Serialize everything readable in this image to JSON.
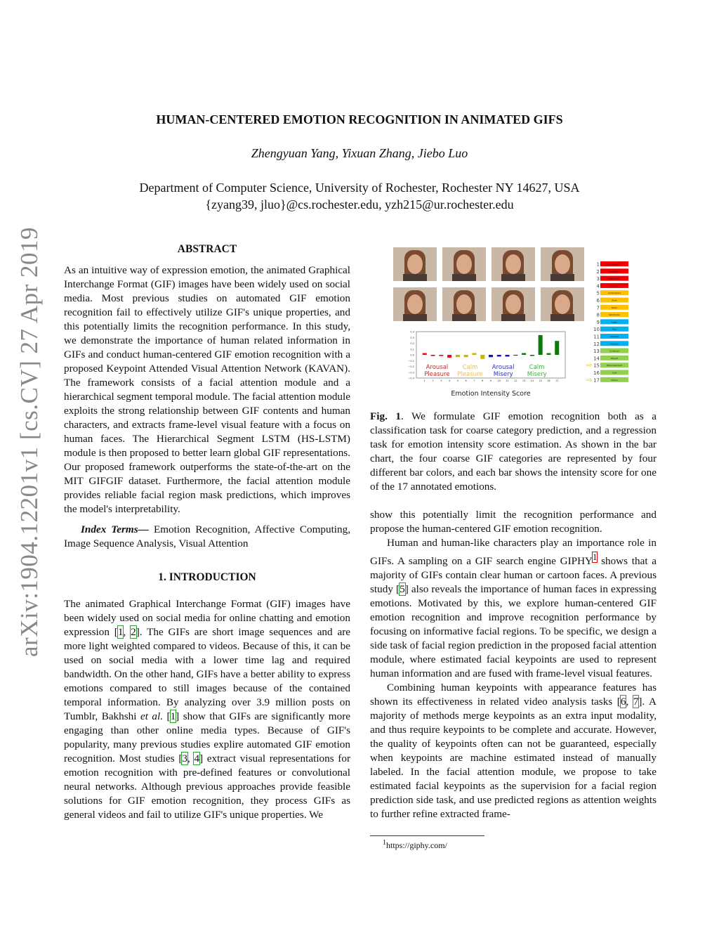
{
  "side_stamp": "arXiv:1904.12201v1  [cs.CV]  27 Apr 2019",
  "title": "HUMAN-CENTERED EMOTION RECOGNITION IN ANIMATED GIFS",
  "authors": "Zhengyuan Yang, Yixuan Zhang, Jiebo Luo",
  "affiliation": "Department of Computer Science, University of Rochester, Rochester NY 14627, USA",
  "emails": "{zyang39, jluo}@cs.rochester.edu, yzh215@ur.rochester.edu",
  "abstract": {
    "heading": "ABSTRACT",
    "text": "As an intuitive way of expression emotion, the animated Graphical Interchange Format (GIF) images have been widely used on social media. Most previous studies on automated GIF emotion recognition fail to effectively utilize GIF's unique properties, and this potentially limits the recognition performance. In this study, we demonstrate the importance of human related information in GIFs and conduct human-centered GIF emotion recognition with a proposed Keypoint Attended Visual Attention Network (KAVAN). The framework consists of a facial attention module and a hierarchical segment temporal module. The facial attention module exploits the strong relationship between GIF contents and human characters, and extracts frame-level visual feature with a focus on human faces. The Hierarchical Segment LSTM (HS-LSTM) module is then proposed to better learn global GIF representations. Our proposed framework outperforms the state-of-the-art on the MIT GIFGIF dataset. Furthermore, the facial attention module provides reliable facial region mask predictions, which improves the model's interpretability.",
    "index_terms_label": "Index Terms—",
    "index_terms": " Emotion Recognition, Affective Computing, Image Sequence Analysis, Visual Attention"
  },
  "intro": {
    "heading": "1.  INTRODUCTION",
    "p1": [
      "The animated Graphical Interchange Format (GIF) images have been widely used on social media for online chatting and emotion expression ",
      "1",
      ", ",
      "2",
      ". The GIFs are short image sequences and are more light weighted compared to videos. Because of this, it can be used on social media with a lower time lag and required bandwidth. On the other hand, GIFs have a better ability to express emotions compared to still images because of the contained temporal information. By analyzing over 3.9 million posts on Tumblr, Bakhshi ",
      "et al.",
      " ",
      "1",
      " show that GIFs are significantly more engaging than other online media types. Because of GIF's popularity, many previous studies explire automated GIF emotion recognition. Most studies ",
      "3",
      ", ",
      "4",
      " extract visual representations for emotion recognition with pre-defined features or convolutional neural networks. Although previous approaches provide feasible solutions for GIF emotion recognition, they process GIFs as general videos and fail to utilize GIF's unique properties. We"
    ],
    "p2": "show this potentially limit the recognition performance and propose the human-centered GIF emotion recognition.",
    "p3": [
      "Human and human-like characters play an importance role in GIFs. A sampling on a GIF search engine GIPHY",
      "1",
      " shows that a majority of GIFs contain clear human or cartoon faces. A previous study ",
      "5",
      " also reveals the importance of human faces in expressing emotions. Motivated by this, we explore human-centered GIF emotion recognition and improve recognition performance by focusing on informative facial regions. To be specific, we design a side task of facial region prediction in the proposed facial attention module, where estimated facial keypoints are used to represent human information and are fused with frame-level visual features."
    ],
    "p4": [
      "Combining human keypoints with appearance features has shown its effectiveness in related video analysis tasks ",
      "6",
      ", ",
      "7",
      ". A majority of methods merge keypoints as an extra input modality, and thus require keypoints to be complete and accurate. However, the quality of keypoints often can not be guaranteed, especially when keypoints are machine estimated instead of manually labeled. In the facial attention module, we propose to take estimated facial keypoints as the supervision for a facial region prediction side task, and use predicted regions as attention weights to further refine extracted frame-"
    ]
  },
  "footnote": {
    "mark": "1",
    "text": "https://giphy.com/"
  },
  "figure": {
    "caption_label": "Fig. 1",
    "caption": ". We formulate GIF emotion recognition both as a classification task for coarse category prediction, and a regression task for emotion intensity score estimation. As shown in the bar chart, the four coarse GIF categories are represented by four different bar colors, and each bar shows the intensity score for one of the 17 annotated emotions."
  },
  "chart_data": {
    "type": "bar",
    "xlabel": "Emotion Intensity Score",
    "ylabel": "",
    "ylim": [
      -0.4,
      0.4
    ],
    "yticks": [
      "0.4",
      "0.3",
      "0.2",
      "0.1",
      "0.0",
      "−0.1",
      "−0.2",
      "−0.3",
      "−0.4"
    ],
    "categories": [
      "1",
      "2",
      "3",
      "4",
      "5",
      "6",
      "7",
      "8",
      "9",
      "10",
      "11",
      "12",
      "13",
      "14",
      "15",
      "16",
      "17"
    ],
    "values": [
      0.03,
      -0.02,
      -0.02,
      -0.05,
      -0.04,
      -0.04,
      0.03,
      -0.07,
      -0.04,
      -0.03,
      -0.03,
      0.0,
      0.03,
      -0.02,
      0.34,
      0.03,
      0.24
    ],
    "groups": [
      {
        "label1": "Arousal",
        "label2": "Pleasure",
        "color": "#e01010",
        "text_color": "#c03030",
        "indices": [
          1,
          2,
          3,
          4
        ]
      },
      {
        "label1": "Calm",
        "label2": "Pleasure",
        "color": "#c8b800",
        "text_color": "#e0c060",
        "indices": [
          5,
          6,
          7,
          8
        ]
      },
      {
        "label1": "Arousal",
        "label2": "Misery",
        "color": "#1010d0",
        "text_color": "#3030c0",
        "indices": [
          9,
          10,
          11,
          12
        ]
      },
      {
        "label1": "Calm",
        "label2": "Misery",
        "color": "#0a7a0a",
        "text_color": "#40b040",
        "indices": [
          13,
          14,
          15,
          16,
          17
        ]
      }
    ],
    "grid": false,
    "legend": "none"
  },
  "emotion_list": {
    "items": [
      {
        "n": "1",
        "label": "Amusement",
        "color": "#f00000"
      },
      {
        "n": "2",
        "label": "Excitement",
        "color": "#f00000"
      },
      {
        "n": "3",
        "label": "Happiness",
        "color": "#f00000"
      },
      {
        "n": "4",
        "label": "Pleasure",
        "color": "#f00000"
      },
      {
        "n": "5",
        "label": "Contentment",
        "color": "#ffc000"
      },
      {
        "n": "6",
        "label": "Pride",
        "color": "#ffc000"
      },
      {
        "n": "7",
        "label": "Relief",
        "color": "#ffc000"
      },
      {
        "n": "8",
        "label": "Satisfaction",
        "color": "#ffc000"
      },
      {
        "n": "9",
        "label": "Anger",
        "color": "#00b0f0"
      },
      {
        "n": "10",
        "label": "Fear",
        "color": "#00b0f0"
      },
      {
        "n": "11",
        "label": "Sadness",
        "color": "#00b0f0"
      },
      {
        "n": "12",
        "label": "Surprise",
        "color": "#00b0f0"
      },
      {
        "n": "13",
        "label": "Contempt",
        "color": "#92d050"
      },
      {
        "n": "14",
        "label": "Disgust",
        "color": "#92d050"
      },
      {
        "n": "15",
        "label": "Embarrassment",
        "color": "#92d050",
        "arrow": true
      },
      {
        "n": "16",
        "label": "Guilt",
        "color": "#92d050"
      },
      {
        "n": "17",
        "label": "Shame",
        "color": "#92d050",
        "arrow": true
      }
    ]
  }
}
